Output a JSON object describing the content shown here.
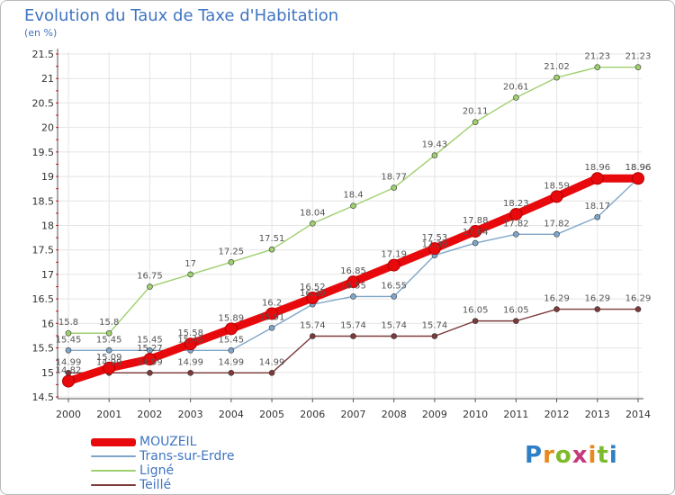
{
  "title": "Evolution du Taux de Taxe d'Habitation",
  "unit_label": "(en %)",
  "logo": {
    "text": "Proxiti",
    "letter_colors": [
      "#2e7fc5",
      "#e8891c",
      "#7fba2c",
      "#c43a7b",
      "#e8891c",
      "#7fba2c",
      "#2e7fc5"
    ]
  },
  "chart_data": {
    "type": "line",
    "title": "Evolution du Taux de Taxe d'Habitation",
    "ylabel": "(en %)",
    "xlabel": "",
    "x": [
      "2000",
      "2001",
      "2002",
      "2003",
      "2004",
      "2005",
      "2006",
      "2007",
      "2008",
      "2009",
      "2010",
      "2011",
      "2012",
      "2013",
      "2014"
    ],
    "ylim": [
      14.5,
      21.5
    ],
    "yticks": [
      "14.5",
      "15",
      "15.5",
      "16",
      "16.5",
      "17",
      "17.5",
      "18",
      "18.5",
      "19",
      "19.5",
      "20",
      "20.5",
      "21",
      "21.5"
    ],
    "grid": true,
    "legend_position": "bottom-left",
    "series": [
      {
        "name": "MOUZEIL",
        "color": "#e8090c",
        "values": [
          14.82,
          15.09,
          15.27,
          15.58,
          15.89,
          16.2,
          16.52,
          16.85,
          17.19,
          17.53,
          17.88,
          18.23,
          18.59,
          18.96,
          18.96
        ],
        "labels": [
          "14.82",
          "15.09",
          "15.27",
          "15.58",
          "15.89",
          "16.2",
          "16.52",
          "16.85",
          "17.19",
          "17.53",
          "17.88",
          "18.23",
          "18.59",
          "18.96",
          "18.96"
        ]
      },
      {
        "name": "Trans-sur-Erdre",
        "color": "#7fa6c9",
        "values": [
          15.45,
          15.45,
          15.45,
          15.45,
          15.45,
          15.91,
          16.39,
          16.55,
          16.55,
          17.39,
          17.64,
          17.82,
          17.82,
          18.17,
          18.96
        ],
        "labels": [
          "15.45",
          "15.45",
          "15.45",
          "15.45",
          "15.45",
          "15.91",
          "16.39",
          "16.55",
          "16.55",
          "17.39",
          "17.64",
          "17.82",
          "17.82",
          "18.17",
          "18.96"
        ]
      },
      {
        "name": "Ligné",
        "color": "#9fd06f",
        "values": [
          15.8,
          15.8,
          16.75,
          17.0,
          17.25,
          17.51,
          18.04,
          18.4,
          18.77,
          19.43,
          20.11,
          20.61,
          21.02,
          21.23,
          21.23
        ],
        "labels": [
          "15.8",
          "15.8",
          "16.75",
          "17",
          "17.25",
          "17.51",
          "18.04",
          "18.4",
          "18.77",
          "19.43",
          "20.11",
          "20.61",
          "21.02",
          "21.23",
          "21.23"
        ]
      },
      {
        "name": "Teillé",
        "color": "#7c3a3a",
        "values": [
          14.99,
          14.99,
          14.99,
          14.99,
          14.99,
          14.99,
          15.74,
          15.74,
          15.74,
          15.74,
          16.05,
          16.05,
          16.29,
          16.29,
          16.29
        ],
        "labels": [
          "14.99",
          "14.99",
          "14.99",
          "14.99",
          "14.99",
          "14.99",
          "15.74",
          "15.74",
          "15.74",
          "15.74",
          "16.05",
          "16.05",
          "16.29",
          "16.29",
          "16.29"
        ]
      }
    ]
  }
}
